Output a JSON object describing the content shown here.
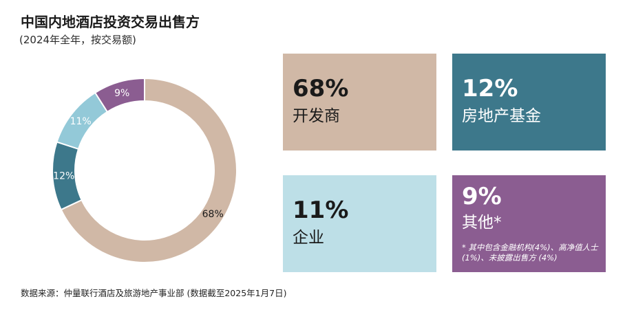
{
  "title": "中国内地酒店投资交易出售方",
  "subtitle": "(2024年全年，按交易额)",
  "chart_data": {
    "type": "pie",
    "title": "中国内地酒店投资交易出售方",
    "subtitle": "(2024年全年，按交易额)",
    "categories": [
      "开发商",
      "房地产基金",
      "企业",
      "其他*"
    ],
    "values": [
      68,
      12,
      11,
      9
    ],
    "labels": [
      "68%",
      "12%",
      "11%",
      "9%"
    ],
    "colors": [
      "#D0B8A6",
      "#3D788B",
      "#93C9D8",
      "#8B5D91"
    ]
  },
  "boxes": [
    {
      "pct": "68%",
      "label": "开发商",
      "bg": "#D0B8A6",
      "fg": "#1a1a1a"
    },
    {
      "pct": "12%",
      "label": "房地产基金",
      "bg": "#3D788B",
      "fg": "#ffffff"
    },
    {
      "pct": "11%",
      "label": "企业",
      "bg": "#BDDFE7",
      "fg": "#1a1a1a"
    },
    {
      "pct": "9%",
      "label": "其他*",
      "bg": "#8B5D91",
      "fg": "#ffffff",
      "note": "* 其中包含金融机构(4%)、高净值人士 (1%)、未披露出售方 (4%)"
    }
  ],
  "source": "数据来源：仲量联行酒店及旅游地产事业部 (数据截至2025年1月7日)"
}
